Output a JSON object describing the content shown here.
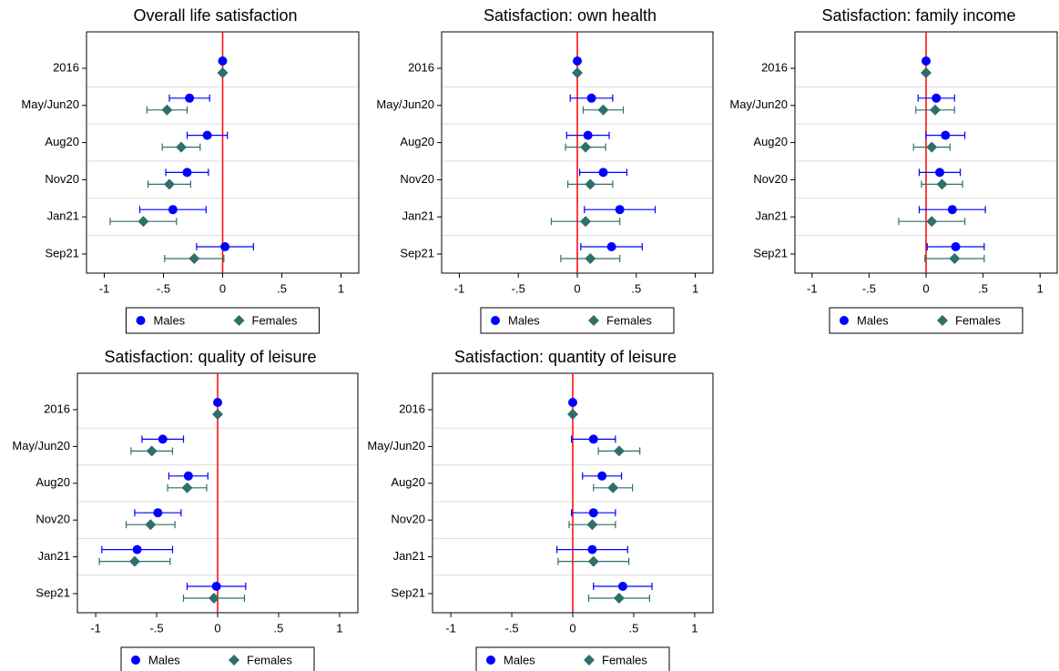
{
  "chart_data": [
    {
      "type": "coefplot",
      "title": "Overall life satisfaction",
      "categories": [
        "2016",
        "May/Jun20",
        "Aug20",
        "Nov20",
        "Jan21",
        "Sep21"
      ],
      "series": [
        {
          "name": "Males",
          "color": "#0000ff",
          "marker": "circle",
          "values": [
            0,
            -0.28,
            -0.13,
            -0.3,
            -0.42,
            0.02
          ],
          "errors": [
            null,
            0.17,
            0.17,
            0.18,
            0.28,
            0.24
          ]
        },
        {
          "name": "Females",
          "color": "#2f6f6a",
          "marker": "diamond",
          "values": [
            0,
            -0.47,
            -0.35,
            -0.45,
            -0.67,
            -0.24
          ],
          "errors": [
            null,
            0.17,
            0.16,
            0.18,
            0.28,
            0.25
          ]
        }
      ],
      "xlim": [
        -1.15,
        1.15
      ],
      "xticks": [
        -1,
        {
          "value": -0.5,
          "label": "-.5"
        },
        0,
        {
          "value": 0.5,
          "label": ".5"
        },
        1
      ],
      "xline": 0,
      "legend": "bottom"
    },
    {
      "type": "coefplot",
      "title": "Satisfaction: own health",
      "categories": [
        "2016",
        "May/Jun20",
        "Aug20",
        "Nov20",
        "Jan21",
        "Sep21"
      ],
      "series": [
        {
          "name": "Males",
          "color": "#0000ff",
          "marker": "circle",
          "values": [
            0,
            0.12,
            0.09,
            0.22,
            0.36,
            0.29
          ],
          "errors": [
            null,
            0.18,
            0.18,
            0.2,
            0.3,
            0.26
          ]
        },
        {
          "name": "Females",
          "color": "#2f6f6a",
          "marker": "diamond",
          "values": [
            0,
            0.22,
            0.07,
            0.11,
            0.07,
            0.11
          ],
          "errors": [
            null,
            0.17,
            0.17,
            0.19,
            0.29,
            0.25
          ]
        }
      ],
      "xlim": [
        -1.15,
        1.15
      ],
      "xticks": [
        -1,
        {
          "value": -0.5,
          "label": "-.5"
        },
        0,
        {
          "value": 0.5,
          "label": ".5"
        },
        1
      ],
      "xline": 0,
      "legend": "bottom"
    },
    {
      "type": "coefplot",
      "title": "Satisfaction: family income",
      "categories": [
        "2016",
        "May/Jun20",
        "Aug20",
        "Nov20",
        "Jan21",
        "Sep21"
      ],
      "series": [
        {
          "name": "Males",
          "color": "#0000ff",
          "marker": "circle",
          "values": [
            0,
            0.09,
            0.17,
            0.12,
            0.23,
            0.26
          ],
          "errors": [
            null,
            0.16,
            0.17,
            0.18,
            0.29,
            0.25
          ]
        },
        {
          "name": "Females",
          "color": "#2f6f6a",
          "marker": "diamond",
          "values": [
            0,
            0.08,
            0.05,
            0.14,
            0.05,
            0.25
          ],
          "errors": [
            null,
            0.17,
            0.16,
            0.18,
            0.29,
            0.26
          ]
        }
      ],
      "xlim": [
        -1.15,
        1.15
      ],
      "xticks": [
        -1,
        {
          "value": -0.5,
          "label": "-.5"
        },
        0,
        {
          "value": 0.5,
          "label": ".5"
        },
        1
      ],
      "xline": 0,
      "legend": "bottom"
    },
    {
      "type": "coefplot",
      "title": "Satisfaction: quality of leisure",
      "categories": [
        "2016",
        "May/Jun20",
        "Aug20",
        "Nov20",
        "Jan21",
        "Sep21"
      ],
      "series": [
        {
          "name": "Males",
          "color": "#0000ff",
          "marker": "circle",
          "values": [
            0,
            -0.45,
            -0.24,
            -0.49,
            -0.66,
            -0.01
          ],
          "errors": [
            null,
            0.17,
            0.16,
            0.19,
            0.29,
            0.24
          ]
        },
        {
          "name": "Females",
          "color": "#2f6f6a",
          "marker": "diamond",
          "values": [
            0,
            -0.54,
            -0.25,
            -0.55,
            -0.68,
            -0.03
          ],
          "errors": [
            null,
            0.17,
            0.16,
            0.2,
            0.29,
            0.25
          ]
        }
      ],
      "xlim": [
        -1.15,
        1.15
      ],
      "xticks": [
        -1,
        {
          "value": -0.5,
          "label": "-.5"
        },
        0,
        {
          "value": 0.5,
          "label": ".5"
        },
        1
      ],
      "xline": 0,
      "legend": "bottom"
    },
    {
      "type": "coefplot",
      "title": "Satisfaction: quantity of leisure",
      "categories": [
        "2016",
        "May/Jun20",
        "Aug20",
        "Nov20",
        "Jan21",
        "Sep21"
      ],
      "series": [
        {
          "name": "Males",
          "color": "#0000ff",
          "marker": "circle",
          "values": [
            0,
            0.17,
            0.24,
            0.17,
            0.16,
            0.41
          ],
          "errors": [
            null,
            0.18,
            0.16,
            0.18,
            0.29,
            0.24
          ]
        },
        {
          "name": "Females",
          "color": "#2f6f6a",
          "marker": "diamond",
          "values": [
            0,
            0.38,
            0.33,
            0.16,
            0.17,
            0.38
          ],
          "errors": [
            null,
            0.17,
            0.16,
            0.19,
            0.29,
            0.25
          ]
        }
      ],
      "xlim": [
        -1.15,
        1.15
      ],
      "xticks": [
        -1,
        {
          "value": -0.5,
          "label": "-.5"
        },
        0,
        {
          "value": 0.5,
          "label": ".5"
        },
        1
      ],
      "xline": 0,
      "legend": "bottom"
    }
  ]
}
